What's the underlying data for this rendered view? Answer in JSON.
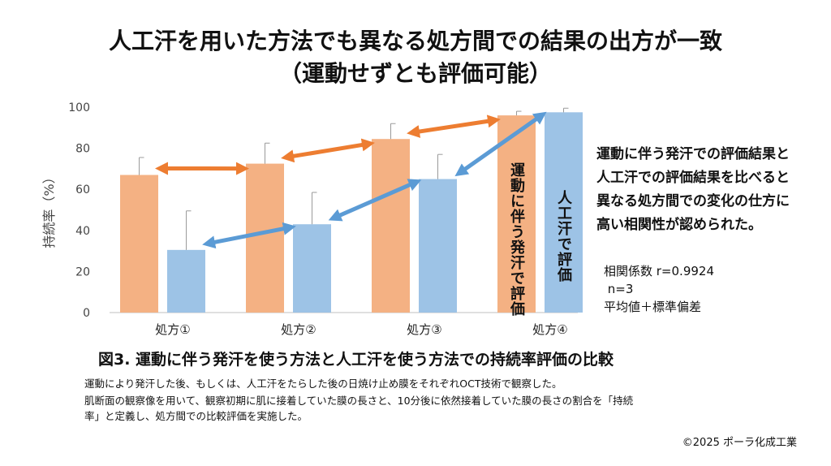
{
  "header": {
    "title_line1": "人工汗を用いた方法でも異なる処方間での結果の出方が一致",
    "title_line2": "（運動せずとも評価可能）"
  },
  "chart_data": {
    "type": "bar",
    "categories": [
      "処方①",
      "処方②",
      "処方③",
      "処方④"
    ],
    "series": [
      {
        "name": "運動に伴う発汗で評価",
        "values": [
          67,
          72.5,
          84.5,
          96
        ],
        "error": [
          8.5,
          10,
          7.5,
          2
        ],
        "color": "#f4b183"
      },
      {
        "name": "人工汗で評価",
        "values": [
          30.5,
          43,
          65,
          97.5
        ],
        "error": [
          19,
          15.5,
          12,
          2
        ],
        "color": "#9dc3e6"
      }
    ],
    "ylabel": "持続率（%）",
    "ylim": [
      0,
      100
    ],
    "yticks": [
      0,
      20,
      40,
      60,
      80,
      100
    ],
    "grid": false,
    "arrow_colors": {
      "sweat": "#ed7d31",
      "artificial": "#5b9bd5"
    }
  },
  "annotations": {
    "note_lines": [
      "運動に伴う発汗での評価結果と",
      "人工汗での評価結果を比べると",
      "異なる処方間での変化の仕方に",
      "高い相関性が認められた。"
    ],
    "stats": [
      "相関係数 r=0.9924",
      " n=3",
      "平均値＋標準偏差"
    ]
  },
  "figure": {
    "caption": "図3. 運動に伴う発汗を使う方法と人工汗を使う方法での持続率評価の比較",
    "description_lines": [
      "運動により発汗した後、もしくは、人工汗をたらした後の日焼け止め膜をそれぞれOCT技術で観察した。",
      "肌断面の観察像を用いて、観察初期に肌に接着していた膜の長さと、10分後に依然接着していた膜の長さの割合を「持続",
      "率」と定義し、処方間での比較評価を実施した。"
    ]
  },
  "footer": {
    "copyright": "©2025 ポーラ化成工業"
  }
}
